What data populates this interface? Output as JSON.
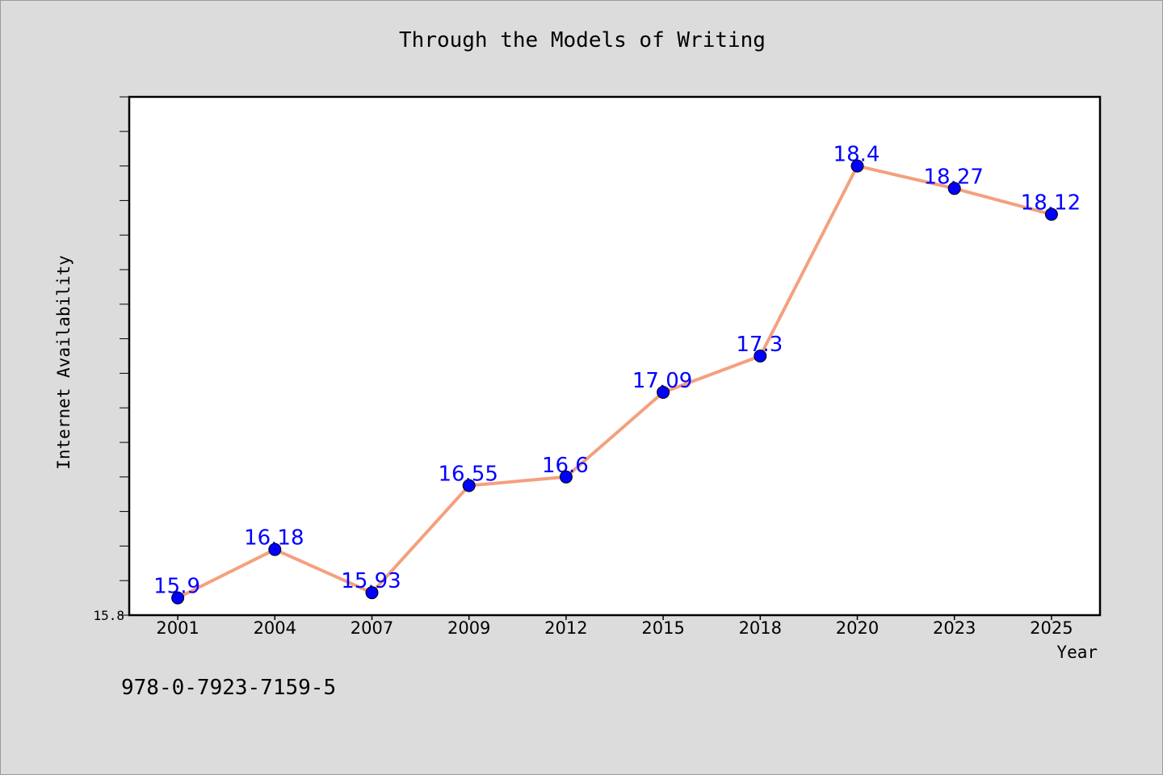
{
  "page": {
    "isbn": "978-0-7923-7159-5"
  },
  "chart_data": {
    "type": "line",
    "title": "Through the Models of Writing",
    "xlabel": "Year",
    "ylabel": "Internet Availability",
    "categories": [
      "2001",
      "2004",
      "2007",
      "2009",
      "2012",
      "2015",
      "2018",
      "2020",
      "2023",
      "2025"
    ],
    "series": [
      {
        "values": [
          15.9,
          16.18,
          15.93,
          16.55,
          16.6,
          17.09,
          17.3,
          18.4,
          18.27,
          18.12
        ]
      }
    ],
    "data_labels": [
      "15.9",
      "16.18",
      "15.93",
      "16.55",
      "16.6",
      "17.09",
      "17.3",
      "18.4",
      "18.27",
      "18.12"
    ],
    "ytick_labels": [
      "15.8"
    ],
    "ylim": [
      15.8,
      18.8
    ],
    "grid": false,
    "colors": {
      "line": "#f4a07f",
      "marker": "#0000ff",
      "label": "#0000ff",
      "plot_bg": "#ffffff",
      "page_bg": "#dcdcdc"
    }
  }
}
